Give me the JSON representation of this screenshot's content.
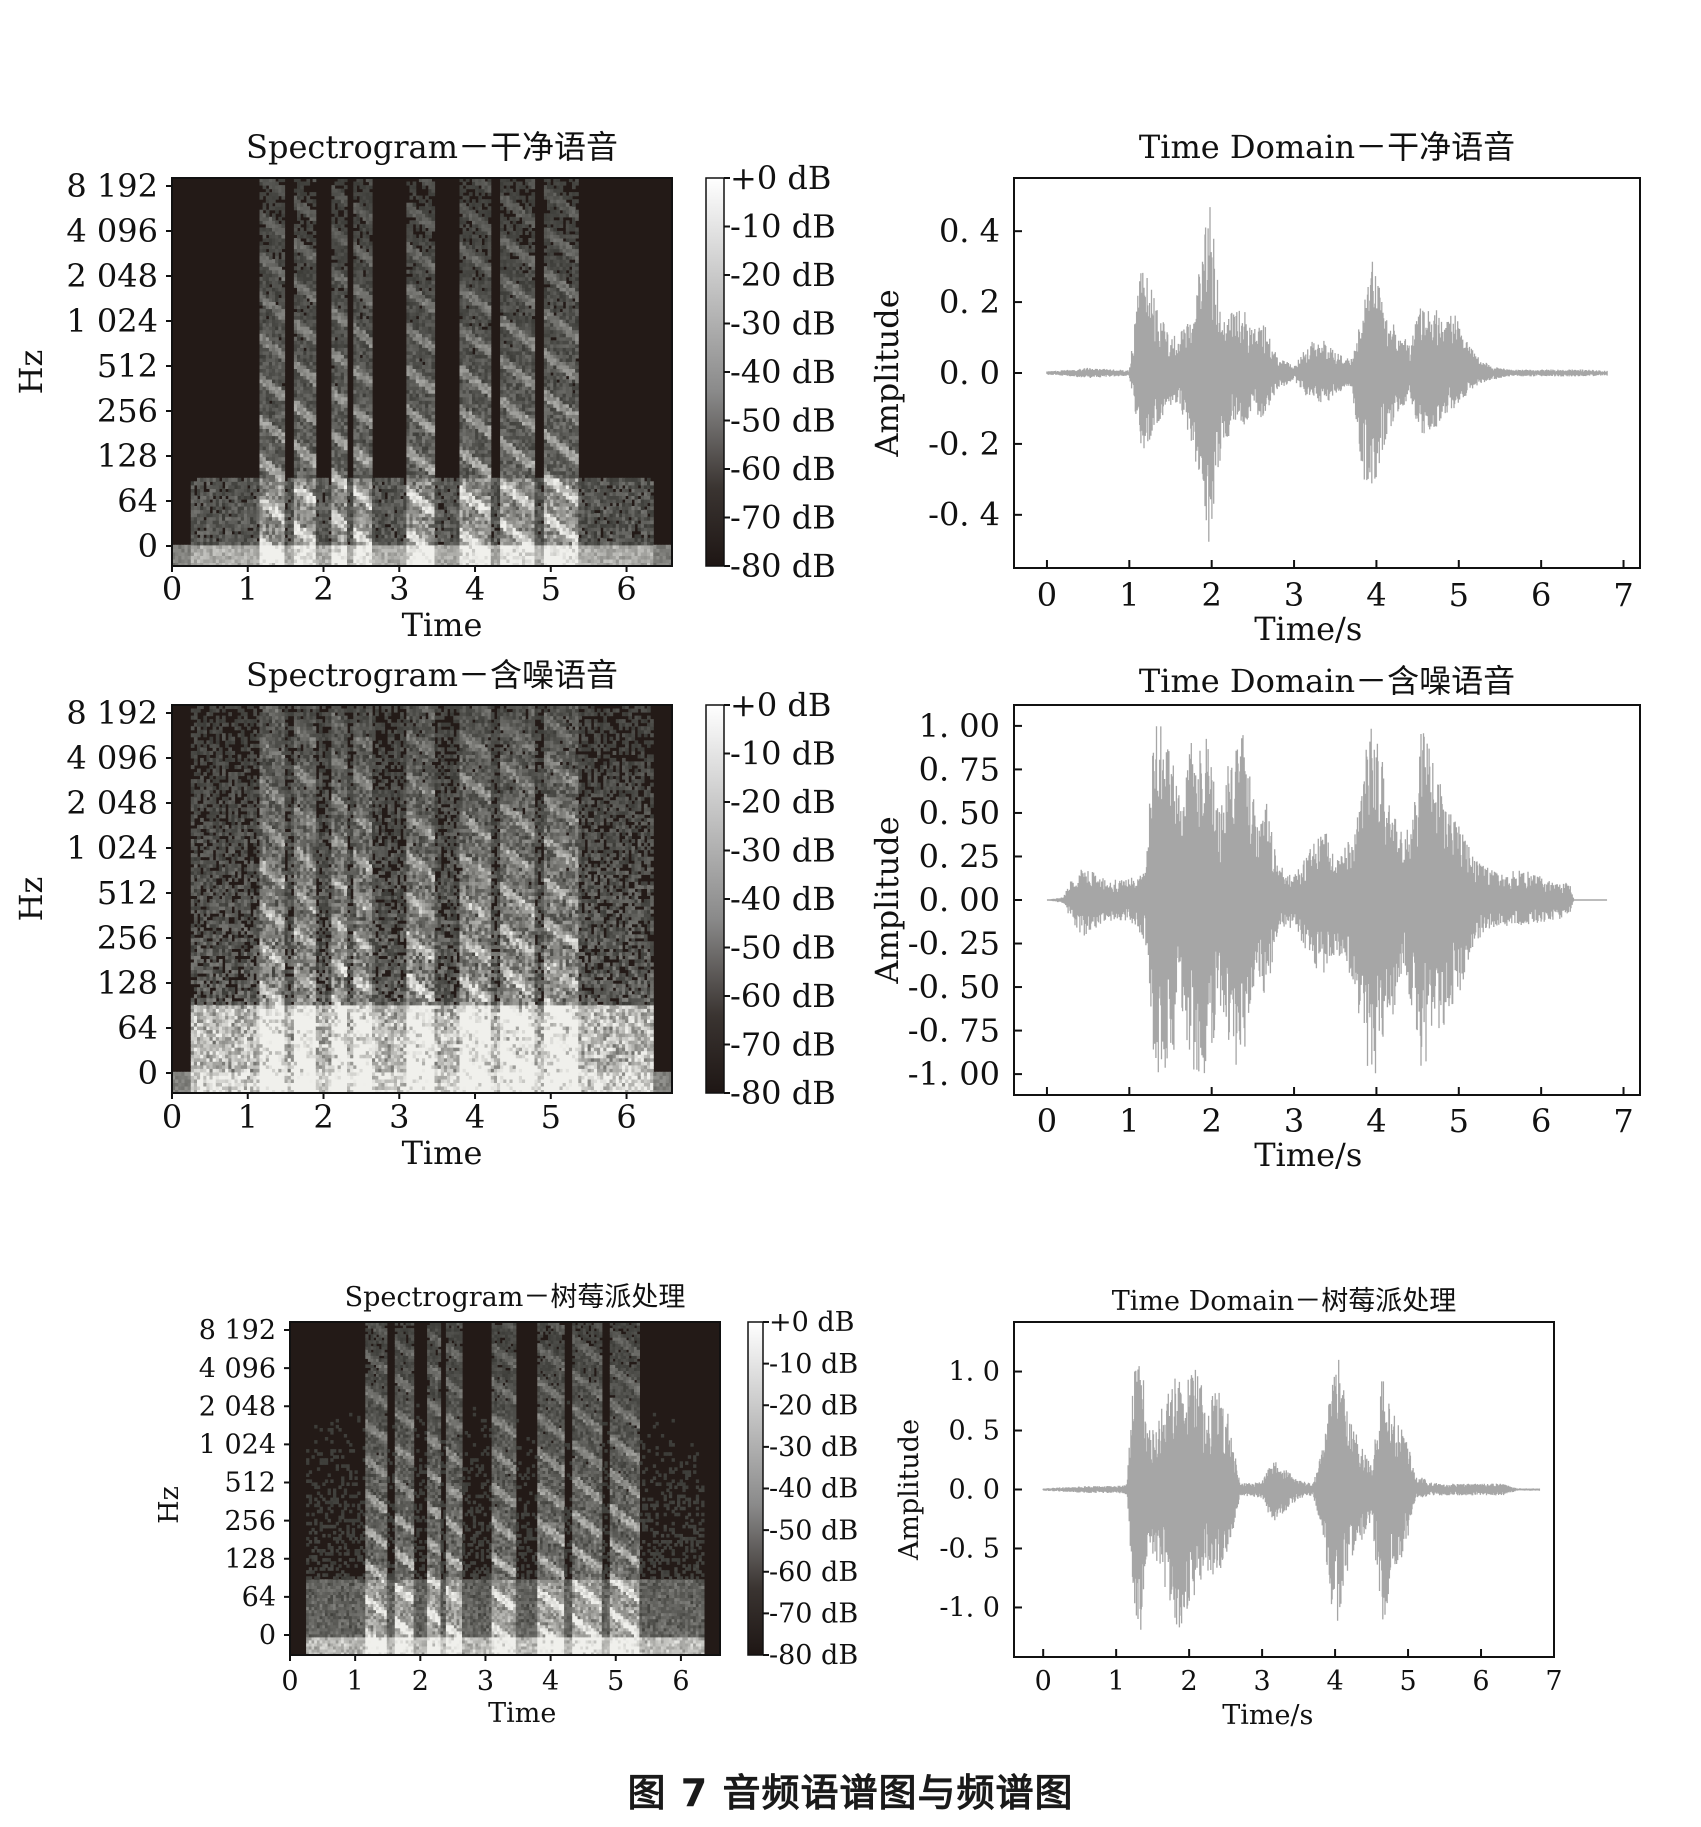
{
  "figure": {
    "caption": "图 7    音频语谱图与频谱图"
  },
  "colors": {
    "waveform": "#a6a6a6",
    "spectrogram_bg": "#231a17",
    "axis": "#111111"
  },
  "chart_data": [
    {
      "type": "heatmap",
      "title": "Spectrogram－干净语音",
      "xlabel": "Time",
      "ylabel": "Hz",
      "xlim": [
        0,
        6.6
      ],
      "x_ticks": [
        "0",
        "1",
        "2",
        "3",
        "4",
        "5",
        "6"
      ],
      "y_ticks": [
        "0",
        "64",
        "128",
        "256",
        "512",
        "1 024",
        "2 048",
        "4 096",
        "8 192"
      ],
      "colorbar": [
        "+0 dB",
        "-10 dB",
        "-20 dB",
        "-30 dB",
        "-40 dB",
        "-50 dB",
        "-60 dB",
        "-70 dB",
        "-80 dB"
      ],
      "voiced_segments_s": [
        [
          1.15,
          1.5
        ],
        [
          1.6,
          1.9
        ],
        [
          2.1,
          2.3
        ],
        [
          2.4,
          2.65
        ],
        [
          3.1,
          3.45
        ],
        [
          3.8,
          4.2
        ],
        [
          4.35,
          4.8
        ],
        [
          4.9,
          5.35
        ]
      ],
      "noise_level": "low"
    },
    {
      "type": "line",
      "title": "Time Domain－干净语音",
      "xlabel": "Time/s",
      "ylabel": "Amplitude",
      "xlim": [
        -0.4,
        7.2
      ],
      "ylim": [
        -0.55,
        0.55
      ],
      "x_ticks": [
        "0",
        "1",
        "2",
        "3",
        "4",
        "5",
        "6",
        "7"
      ],
      "y_tick_values": [
        0.4,
        0.2,
        0.0,
        -0.2,
        -0.4
      ],
      "y_ticks": [
        "0. 4",
        "0. 2",
        "0. 0",
        "-0. 2",
        "-0. 4"
      ],
      "envelope": {
        "t": [
          0,
          0.3,
          0.5,
          0.8,
          1.0,
          1.15,
          1.3,
          1.45,
          1.6,
          1.75,
          1.85,
          1.97,
          2.1,
          2.25,
          2.35,
          2.5,
          2.6,
          2.8,
          3.0,
          3.2,
          3.35,
          3.5,
          3.7,
          3.85,
          3.95,
          4.1,
          4.25,
          4.4,
          4.55,
          4.7,
          4.8,
          4.95,
          5.1,
          5.25,
          5.4,
          5.6,
          6.0,
          6.5,
          6.8
        ],
        "pos": [
          0.005,
          0.01,
          0.015,
          0.01,
          0.008,
          0.32,
          0.22,
          0.12,
          0.1,
          0.18,
          0.3,
          0.5,
          0.22,
          0.17,
          0.2,
          0.12,
          0.16,
          0.05,
          0.02,
          0.09,
          0.1,
          0.06,
          0.04,
          0.2,
          0.33,
          0.2,
          0.13,
          0.08,
          0.2,
          0.2,
          0.15,
          0.17,
          0.09,
          0.04,
          0.02,
          0.01,
          0.01,
          0.01,
          0.008
        ],
        "neg": [
          -0.005,
          -0.01,
          -0.015,
          -0.01,
          -0.008,
          -0.22,
          -0.18,
          -0.1,
          -0.08,
          -0.2,
          -0.3,
          -0.49,
          -0.25,
          -0.15,
          -0.17,
          -0.1,
          -0.13,
          -0.05,
          -0.02,
          -0.08,
          -0.1,
          -0.06,
          -0.04,
          -0.32,
          -0.35,
          -0.2,
          -0.12,
          -0.08,
          -0.18,
          -0.17,
          -0.12,
          -0.1,
          -0.06,
          -0.03,
          -0.02,
          -0.01,
          -0.01,
          -0.01,
          -0.008
        ]
      }
    },
    {
      "type": "heatmap",
      "title": "Spectrogram－含噪语音",
      "xlabel": "Time",
      "ylabel": "Hz",
      "xlim": [
        0,
        6.6
      ],
      "x_ticks": [
        "0",
        "1",
        "2",
        "3",
        "4",
        "5",
        "6"
      ],
      "y_ticks": [
        "0",
        "64",
        "128",
        "256",
        "512",
        "1 024",
        "2 048",
        "4 096",
        "8 192"
      ],
      "colorbar": [
        "+0 dB",
        "-10 dB",
        "-20 dB",
        "-30 dB",
        "-40 dB",
        "-50 dB",
        "-60 dB",
        "-70 dB",
        "-80 dB"
      ],
      "voiced_segments_s": [
        [
          1.15,
          1.5
        ],
        [
          1.6,
          1.9
        ],
        [
          2.1,
          2.3
        ],
        [
          2.4,
          2.65
        ],
        [
          3.1,
          3.45
        ],
        [
          3.8,
          4.2
        ],
        [
          4.35,
          4.8
        ],
        [
          4.9,
          5.35
        ]
      ],
      "noise_level": "high"
    },
    {
      "type": "line",
      "title": "Time Domain－含噪语音",
      "xlabel": "Time/s",
      "ylabel": "Amplitude",
      "xlim": [
        -0.4,
        7.2
      ],
      "ylim": [
        -1.12,
        1.12
      ],
      "x_ticks": [
        "0",
        "1",
        "2",
        "3",
        "4",
        "5",
        "6",
        "7"
      ],
      "y_tick_values": [
        1.0,
        0.75,
        0.5,
        0.25,
        0.0,
        -0.25,
        -0.5,
        -0.75,
        -1.0
      ],
      "y_ticks": [
        "1. 00",
        "0. 75",
        "0. 50",
        "0. 25",
        "0. 00",
        "-0. 25",
        "-0. 50",
        "-0. 75",
        "-1. 00"
      ],
      "envelope": {
        "t": [
          0,
          0.2,
          0.3,
          0.45,
          0.7,
          1.0,
          1.2,
          1.3,
          1.5,
          1.6,
          1.8,
          1.95,
          2.1,
          2.25,
          2.4,
          2.55,
          2.65,
          2.8,
          3.0,
          3.2,
          3.35,
          3.5,
          3.75,
          3.9,
          4.0,
          4.15,
          4.35,
          4.55,
          4.7,
          4.85,
          5.0,
          5.15,
          5.3,
          5.5,
          5.8,
          6.1,
          6.35,
          6.4,
          6.8
        ],
        "pos": [
          0.0,
          0.02,
          0.12,
          0.2,
          0.12,
          0.12,
          0.2,
          1.0,
          1.0,
          0.6,
          1.0,
          1.0,
          0.55,
          0.9,
          1.0,
          0.45,
          0.6,
          0.2,
          0.15,
          0.3,
          0.45,
          0.28,
          0.4,
          1.0,
          1.0,
          0.6,
          0.35,
          1.0,
          0.8,
          0.55,
          0.45,
          0.3,
          0.2,
          0.15,
          0.18,
          0.12,
          0.1,
          0.0,
          0.0
        ],
        "neg": [
          0.0,
          -0.02,
          -0.12,
          -0.22,
          -0.12,
          -0.12,
          -0.25,
          -1.0,
          -1.0,
          -0.7,
          -1.0,
          -1.0,
          -0.6,
          -1.0,
          -0.85,
          -0.5,
          -0.6,
          -0.2,
          -0.15,
          -0.35,
          -0.45,
          -0.3,
          -0.55,
          -1.0,
          -1.0,
          -0.75,
          -0.4,
          -1.0,
          -0.8,
          -0.7,
          -0.55,
          -0.3,
          -0.2,
          -0.15,
          -0.15,
          -0.12,
          -0.1,
          0.0,
          0.0
        ]
      }
    },
    {
      "type": "heatmap",
      "title": "Spectrogram－树莓派处理",
      "xlabel": "Time",
      "ylabel": "Hz",
      "xlim": [
        0,
        6.6
      ],
      "x_ticks": [
        "0",
        "1",
        "2",
        "3",
        "4",
        "5",
        "6"
      ],
      "y_ticks": [
        "0",
        "64",
        "128",
        "256",
        "512",
        "1 024",
        "2 048",
        "4 096",
        "8 192"
      ],
      "colorbar": [
        "+0 dB",
        "-10 dB",
        "-20 dB",
        "-30 dB",
        "-40 dB",
        "-50 dB",
        "-60 dB",
        "-70 dB",
        "-80 dB"
      ],
      "voiced_segments_s": [
        [
          1.15,
          1.5
        ],
        [
          1.6,
          1.9
        ],
        [
          2.1,
          2.3
        ],
        [
          2.4,
          2.65
        ],
        [
          3.1,
          3.45
        ],
        [
          3.8,
          4.2
        ],
        [
          4.35,
          4.8
        ],
        [
          4.9,
          5.35
        ]
      ],
      "noise_level": "medium"
    },
    {
      "type": "line",
      "title": "Time Domain－树莓派处理",
      "xlabel": "Time/s",
      "ylabel": "Amplitude",
      "xlim": [
        -0.4,
        7.0
      ],
      "ylim": [
        -1.42,
        1.42
      ],
      "x_ticks": [
        "0",
        "1",
        "2",
        "3",
        "4",
        "5",
        "6",
        "7"
      ],
      "y_tick_values": [
        1.0,
        0.5,
        0.0,
        -0.5,
        -1.0
      ],
      "y_ticks": [
        "1. 0",
        "0. 5",
        "0. 0",
        "-0. 5",
        "-1. 0"
      ],
      "envelope": {
        "t": [
          0,
          0.3,
          0.6,
          1.0,
          1.15,
          1.25,
          1.35,
          1.45,
          1.55,
          1.7,
          1.85,
          1.95,
          2.1,
          2.25,
          2.4,
          2.55,
          2.7,
          2.85,
          3.0,
          3.15,
          3.3,
          3.5,
          3.7,
          3.85,
          3.95,
          4.05,
          4.2,
          4.35,
          4.5,
          4.65,
          4.8,
          4.95,
          5.1,
          5.3,
          5.6,
          6.0,
          6.3,
          6.5,
          6.8
        ],
        "pos": [
          0.01,
          0.02,
          0.03,
          0.03,
          0.05,
          1.2,
          1.25,
          0.55,
          0.6,
          0.8,
          1.05,
          0.9,
          1.05,
          0.75,
          0.95,
          0.6,
          0.05,
          0.06,
          0.07,
          0.25,
          0.18,
          0.08,
          0.05,
          0.4,
          0.95,
          1.1,
          0.6,
          0.4,
          0.2,
          1.05,
          0.7,
          0.5,
          0.15,
          0.06,
          0.05,
          0.05,
          0.05,
          0.01,
          0.01
        ],
        "neg": [
          -0.01,
          -0.02,
          -0.03,
          -0.03,
          -0.05,
          -1.15,
          -1.2,
          -0.55,
          -0.6,
          -0.9,
          -1.25,
          -1.05,
          -0.95,
          -0.7,
          -0.75,
          -0.5,
          -0.05,
          -0.06,
          -0.07,
          -0.3,
          -0.2,
          -0.08,
          -0.05,
          -0.45,
          -1.0,
          -1.25,
          -0.6,
          -0.45,
          -0.25,
          -1.2,
          -0.7,
          -0.55,
          -0.1,
          -0.05,
          -0.05,
          -0.05,
          -0.05,
          -0.01,
          -0.01
        ]
      }
    }
  ]
}
